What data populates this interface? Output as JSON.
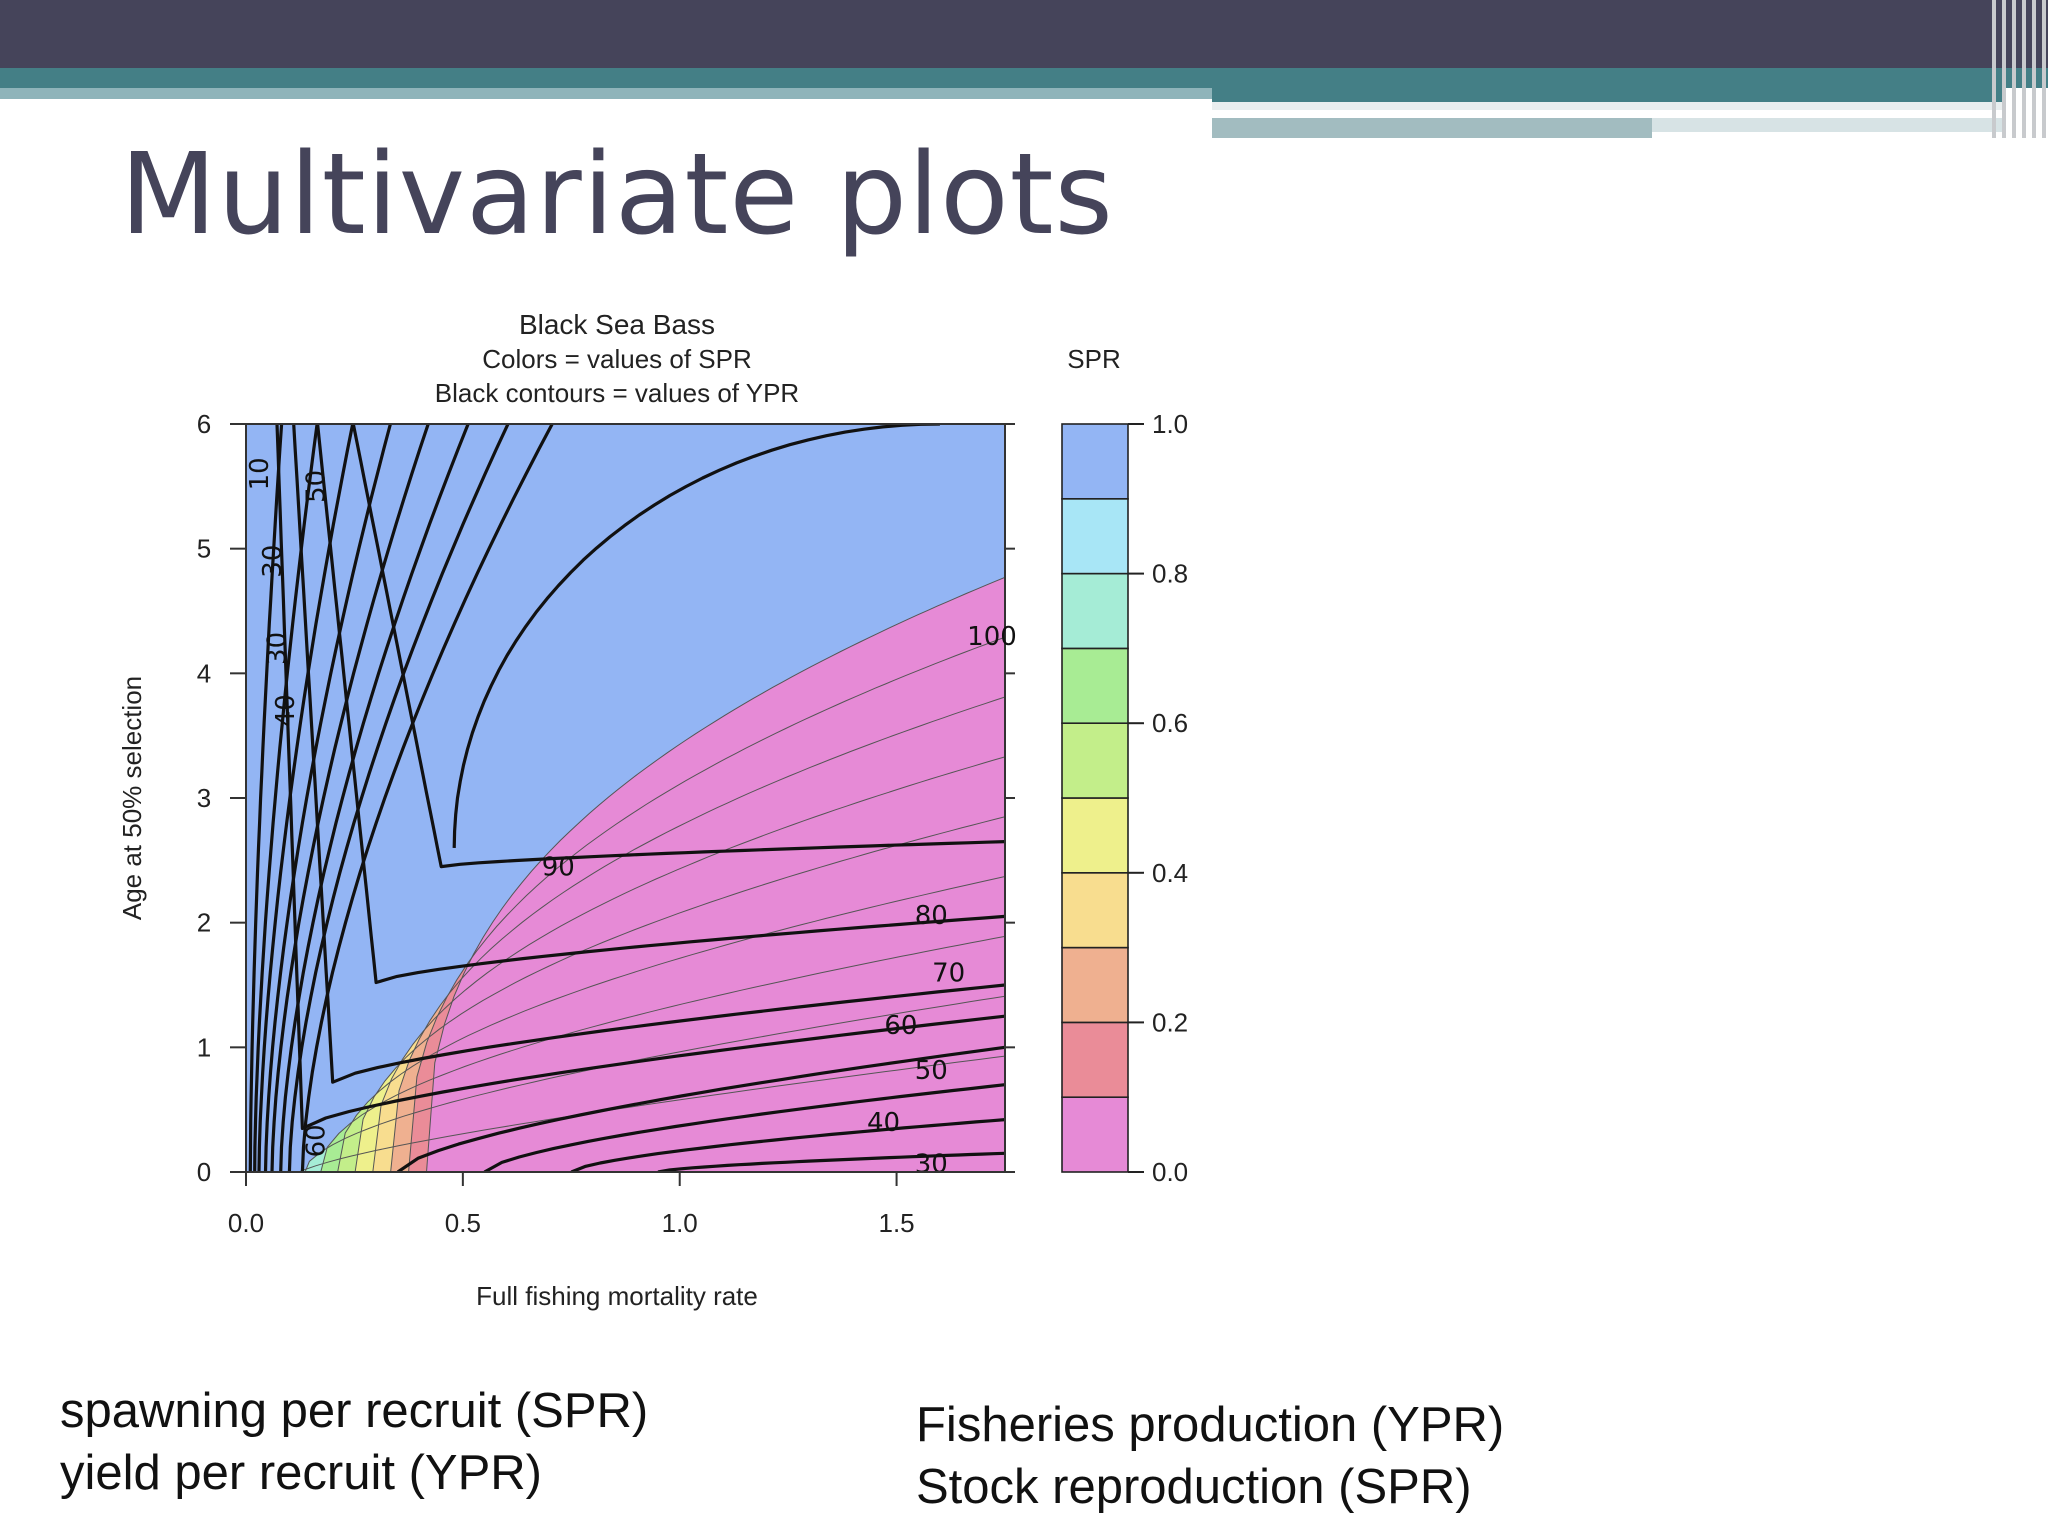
{
  "slide": {
    "title": "Multivariate plots",
    "left_note": [
      "spawning per recruit (SPR)",
      "yield per recruit (YPR)"
    ],
    "right_note": [
      "Fisheries production (YPR)",
      "Stock reproduction (SPR)"
    ]
  },
  "colors": {
    "header_bar": "#45445a",
    "teal": "#447f86",
    "light_teal": "#8fb4ba",
    "title_text": "#45445a"
  },
  "chart_data": {
    "type": "contour",
    "title": "Black Sea Bass",
    "subtitle_lines": [
      "Colors = values of SPR",
      "Black contours = values of YPR"
    ],
    "xlabel": "Full fishing mortality rate",
    "ylabel": "Age at 50% selection",
    "xlim": [
      0,
      1.75
    ],
    "ylim": [
      0,
      6
    ],
    "x_ticks": [
      "0.0",
      "0.5",
      "1.0",
      "1.5"
    ],
    "y_ticks": [
      "0",
      "1",
      "2",
      "3",
      "4",
      "5",
      "6"
    ],
    "colorbar": {
      "title": "SPR",
      "ticks": [
        "0.0",
        "0.2",
        "0.4",
        "0.6",
        "0.8",
        "1.0"
      ],
      "levels": [
        0.0,
        0.1,
        0.2,
        0.3,
        0.4,
        0.5,
        0.6,
        0.7,
        0.8,
        0.9,
        1.0
      ],
      "colors": [
        "#e68ad6",
        "#ea8c98",
        "#efb090",
        "#f8dd8f",
        "#eef08c",
        "#c3ee8a",
        "#a8ec94",
        "#a5ecd6",
        "#a8e6f6",
        "#93b5f4"
      ]
    },
    "ypr_contour_labels": [
      {
        "label": "10",
        "x": 0.03,
        "y": 5.6
      },
      {
        "label": "50",
        "x": 0.16,
        "y": 5.5
      },
      {
        "label": "30",
        "x": 0.06,
        "y": 4.9
      },
      {
        "label": "30",
        "x": 0.07,
        "y": 4.2
      },
      {
        "label": "40",
        "x": 0.09,
        "y": 3.7
      },
      {
        "label": "60",
        "x": 0.16,
        "y": 0.25
      },
      {
        "label": "90",
        "x": 0.72,
        "y": 2.45
      },
      {
        "label": "80",
        "x": 1.58,
        "y": 2.06
      },
      {
        "label": "70",
        "x": 1.62,
        "y": 1.6
      },
      {
        "label": "60",
        "x": 1.51,
        "y": 1.18
      },
      {
        "label": "50",
        "x": 1.58,
        "y": 0.82
      },
      {
        "label": "40",
        "x": 1.47,
        "y": 0.4
      },
      {
        "label": "30",
        "x": 1.58,
        "y": 0.07
      },
      {
        "label": "100",
        "x": 1.72,
        "y": 4.3
      }
    ],
    "grid": false,
    "legend": "right (color bar)"
  }
}
